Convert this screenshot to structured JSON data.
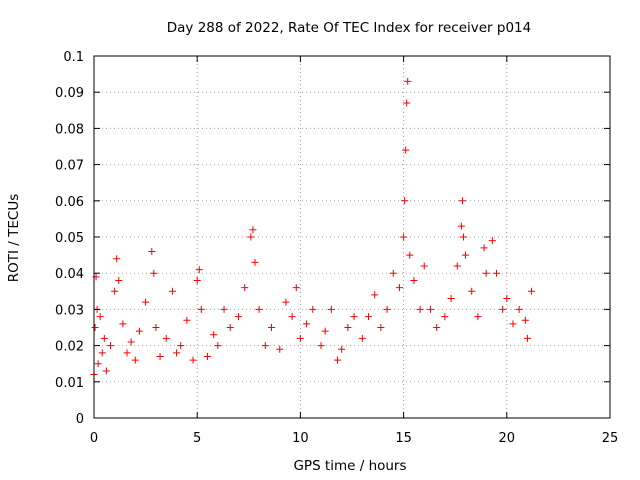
{
  "chart_data": {
    "type": "scatter",
    "title": "Day 288 of 2022, Rate Of TEC Index for receiver p014",
    "xlabel": "GPS time / hours",
    "ylabel": "ROTI / TECUs",
    "xlim": [
      0,
      25
    ],
    "ylim": [
      0,
      0.1
    ],
    "xticks": [
      0,
      5,
      10,
      15,
      20,
      25
    ],
    "yticks": [
      0,
      0.01,
      0.02,
      0.03,
      0.04,
      0.05,
      0.06,
      0.07,
      0.08,
      0.09,
      0.1
    ],
    "xtick_labels": [
      "0",
      "5",
      "10",
      "15",
      "20",
      "25"
    ],
    "ytick_labels": [
      "0",
      "0.01",
      "0.02",
      "0.03",
      "0.04",
      "0.05",
      "0.06",
      "0.07",
      "0.08",
      "0.09",
      "0.1"
    ],
    "grid": true,
    "marker": "+",
    "marker_color": "#ff0000",
    "series": [
      {
        "x": [
          0.0,
          0.05,
          0.1,
          0.15,
          0.2,
          0.3,
          0.4,
          0.5,
          0.6,
          0.8,
          1.0,
          1.1,
          1.2,
          1.4,
          1.6,
          1.8,
          2.0,
          2.2,
          2.5,
          2.8,
          2.9,
          3.0,
          3.2,
          3.5,
          3.8,
          4.0,
          4.2,
          4.5,
          4.8,
          5.0,
          5.1,
          5.2,
          5.5,
          5.8,
          6.0,
          6.3,
          6.6,
          7.0,
          7.3,
          7.6,
          7.7,
          7.8,
          8.0,
          8.3,
          8.6,
          9.0,
          9.3,
          9.6,
          9.8,
          10.0,
          10.3,
          10.6,
          11.0,
          11.2,
          11.5,
          11.8,
          12.0,
          12.3,
          12.6,
          13.0,
          13.3,
          13.6,
          13.9,
          14.2,
          14.5,
          14.8,
          15.0,
          15.05,
          15.1,
          15.15,
          15.2,
          15.3,
          15.5,
          15.8,
          16.0,
          16.3,
          16.6,
          17.0,
          17.3,
          17.6,
          17.8,
          17.85,
          17.9,
          18.0,
          18.3,
          18.6,
          18.9,
          19.0,
          19.3,
          19.5,
          19.8,
          20.0,
          20.3,
          20.6,
          20.9,
          21.0,
          21.2
        ],
        "y": [
          0.012,
          0.025,
          0.039,
          0.03,
          0.015,
          0.028,
          0.018,
          0.022,
          0.013,
          0.02,
          0.035,
          0.044,
          0.038,
          0.026,
          0.018,
          0.021,
          0.016,
          0.024,
          0.032,
          0.046,
          0.04,
          0.025,
          0.017,
          0.022,
          0.035,
          0.018,
          0.02,
          0.027,
          0.016,
          0.038,
          0.041,
          0.03,
          0.017,
          0.023,
          0.02,
          0.03,
          0.025,
          0.028,
          0.036,
          0.05,
          0.052,
          0.043,
          0.03,
          0.02,
          0.025,
          0.019,
          0.032,
          0.028,
          0.036,
          0.022,
          0.026,
          0.03,
          0.02,
          0.024,
          0.03,
          0.016,
          0.019,
          0.025,
          0.028,
          0.022,
          0.028,
          0.034,
          0.025,
          0.03,
          0.04,
          0.036,
          0.05,
          0.06,
          0.074,
          0.087,
          0.093,
          0.045,
          0.038,
          0.03,
          0.042,
          0.03,
          0.025,
          0.028,
          0.033,
          0.042,
          0.053,
          0.06,
          0.05,
          0.045,
          0.035,
          0.028,
          0.047,
          0.04,
          0.049,
          0.04,
          0.03,
          0.033,
          0.026,
          0.03,
          0.027,
          0.022,
          0.035
        ]
      }
    ]
  }
}
